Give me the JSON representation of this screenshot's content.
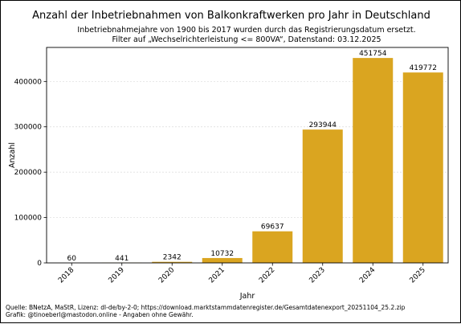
{
  "chart_data": {
    "type": "bar",
    "title": "Anzahl der Inbetriebnahmen von Balkonkraftwerken pro Jahr in Deutschland",
    "subtitle_lines": [
      "Inbetriebnahmejahre von 1900 bis 2017 wurden durch das Registrierungsdatum ersetzt.",
      "Filter auf „Wechselrichterleistung <= 800VA“, Datenstand: 03.12.2025"
    ],
    "xlabel": "Jahr",
    "ylabel": "Anzahl",
    "categories": [
      "2018",
      "2019",
      "2020",
      "2021",
      "2022",
      "2023",
      "2024",
      "2025"
    ],
    "values": [
      60,
      441,
      2342,
      10732,
      69637,
      293944,
      451754,
      419772
    ],
    "data_labels": [
      "60",
      "441",
      "2342",
      "10732",
      "69637",
      "293944",
      "451754",
      "419772"
    ],
    "ylim": [
      0,
      475000
    ],
    "yticks": [
      0,
      100000,
      200000,
      300000,
      400000
    ],
    "ytick_labels": [
      "0",
      "100000",
      "200000",
      "300000",
      "400000"
    ],
    "grid": "horizontal-dashed",
    "legend": "none",
    "bar_color": "#DAA520"
  },
  "footer": {
    "line1": "Quelle: BNetzA, MaStR, Lizenz: dl-de/by-2-0; https://download.marktstammdatenregister.de/Gesamtdatenexport_20251104_25.2.zip",
    "line2": "Grafik: @tinoeberl@mastodon.online - Angaben ohne Gewähr."
  }
}
